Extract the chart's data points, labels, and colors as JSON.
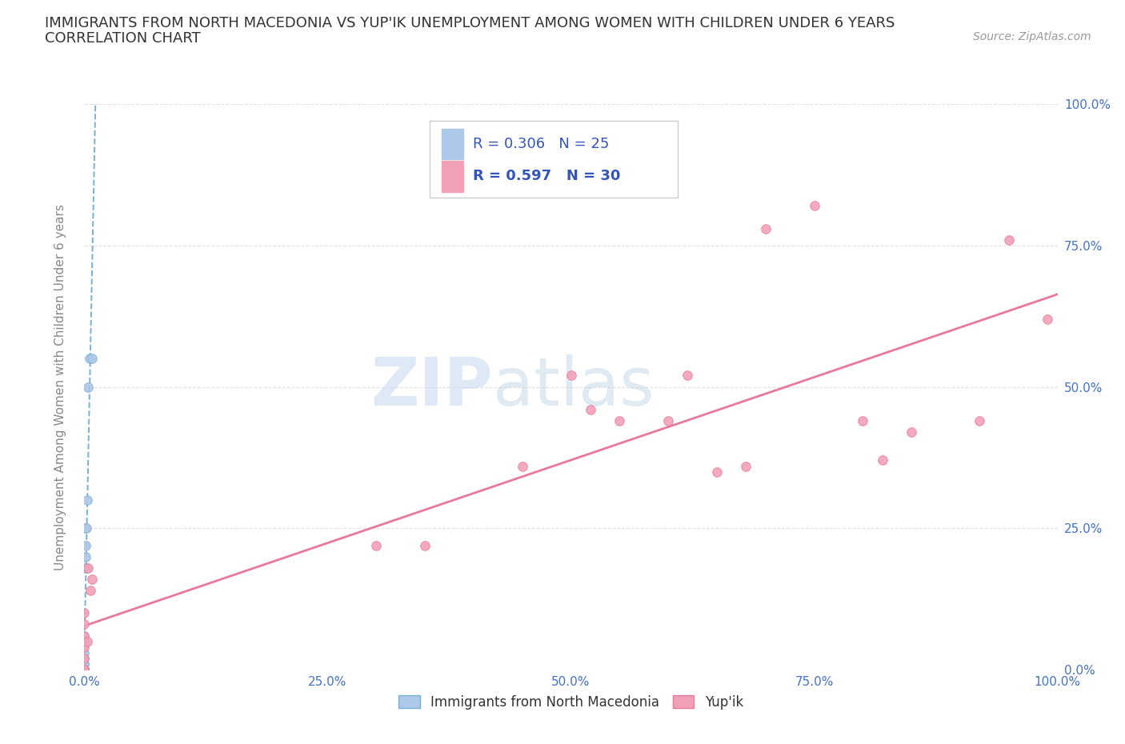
{
  "title": "IMMIGRANTS FROM NORTH MACEDONIA VS YUP'IK UNEMPLOYMENT AMONG WOMEN WITH CHILDREN UNDER 6 YEARS",
  "subtitle": "CORRELATION CHART",
  "source": "Source: ZipAtlas.com",
  "ylabel": "Unemployment Among Women with Children Under 6 years",
  "watermark_1": "ZIP",
  "watermark_2": "atlas",
  "series": [
    {
      "name": "Immigrants from North Macedonia",
      "color": "#adc8e8",
      "border_color": "#7aafd4",
      "R": 0.306,
      "N": 25,
      "line_color": "#7aafd4",
      "line_style": "--",
      "x": [
        0.0,
        0.0,
        0.0,
        0.0,
        0.0,
        0.0,
        0.0,
        0.0,
        0.0,
        0.0,
        0.0,
        0.0,
        0.0,
        0.0,
        0.0,
        0.001,
        0.001,
        0.001,
        0.001,
        0.002,
        0.002,
        0.003,
        0.004,
        0.005,
        0.008
      ],
      "y": [
        0.0,
        0.0,
        0.0,
        0.0,
        0.0,
        0.0,
        0.0,
        0.0,
        0.0,
        0.01,
        0.01,
        0.02,
        0.03,
        0.05,
        0.06,
        0.18,
        0.2,
        0.22,
        0.25,
        0.18,
        0.25,
        0.3,
        0.5,
        0.55,
        0.55
      ]
    },
    {
      "name": "Yup'ik",
      "color": "#f2a0b8",
      "border_color": "#e8799a",
      "R": 0.597,
      "N": 30,
      "line_color": "#e8799a",
      "line_style": "-",
      "x": [
        0.0,
        0.0,
        0.0,
        0.0,
        0.0,
        0.0,
        0.0,
        0.0,
        0.003,
        0.004,
        0.006,
        0.008,
        0.3,
        0.35,
        0.45,
        0.5,
        0.52,
        0.55,
        0.6,
        0.62,
        0.65,
        0.68,
        0.7,
        0.75,
        0.8,
        0.82,
        0.85,
        0.92,
        0.95,
        0.99
      ],
      "y": [
        0.0,
        0.0,
        0.0,
        0.02,
        0.04,
        0.06,
        0.08,
        0.1,
        0.05,
        0.18,
        0.14,
        0.16,
        0.22,
        0.22,
        0.36,
        0.52,
        0.46,
        0.44,
        0.44,
        0.52,
        0.35,
        0.36,
        0.78,
        0.82,
        0.44,
        0.37,
        0.42,
        0.44,
        0.76,
        0.62
      ]
    }
  ],
  "xlim": [
    0.0,
    1.0
  ],
  "ylim": [
    0.0,
    1.0
  ],
  "xticks": [
    0.0,
    0.25,
    0.5,
    0.75,
    1.0
  ],
  "yticks": [
    0.0,
    0.25,
    0.5,
    0.75,
    1.0
  ],
  "xticklabels": [
    "0.0%",
    "25.0%",
    "50.0%",
    "75.0%",
    "100.0%"
  ],
  "right_yticklabels": [
    "0.0%",
    "25.0%",
    "50.0%",
    "75.0%",
    "100.0%"
  ],
  "tick_color": "#4472c4",
  "background_color": "#ffffff",
  "grid_color": "#e0e0e0",
  "marker_size": 70
}
